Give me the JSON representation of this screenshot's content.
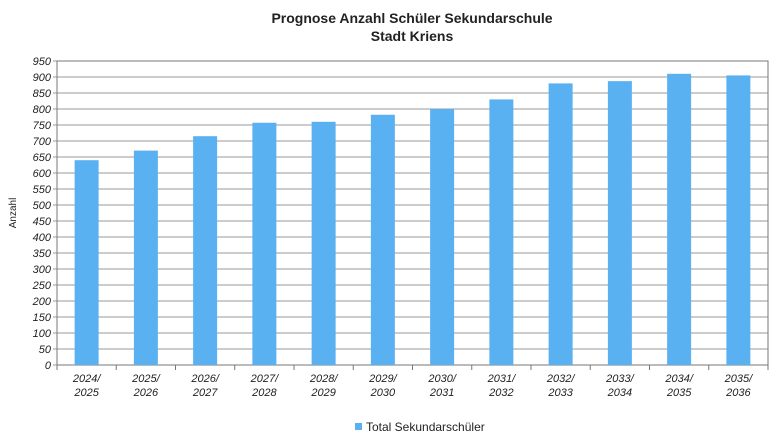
{
  "chart_data": {
    "type": "bar",
    "title": "Prognose Anzahl Schüler Sekundarschule",
    "subtitle": "Stadt Kriens",
    "y_label": "Anzahl",
    "categories": [
      "2024/\n2025",
      "2025/\n2026",
      "2026/\n2027",
      "2027/\n2028",
      "2028/\n2029",
      "2029/\n2030",
      "2030/\n2031",
      "2031/\n2032",
      "2032/\n2033",
      "2033/\n2034",
      "2034/\n2035",
      "2035/\n2036"
    ],
    "series": [
      {
        "name": "Total Sekundarschüler",
        "color": "#5ab1f2",
        "values": [
          640,
          670,
          715,
          757,
          760,
          782,
          800,
          830,
          880,
          887,
          910,
          905
        ]
      }
    ],
    "ylim": [
      0,
      950
    ],
    "yticks": [
      0,
      50,
      100,
      150,
      200,
      250,
      300,
      350,
      400,
      450,
      500,
      550,
      600,
      650,
      700,
      750,
      800,
      850,
      900,
      950
    ],
    "grid": true,
    "legend": "bottom"
  }
}
